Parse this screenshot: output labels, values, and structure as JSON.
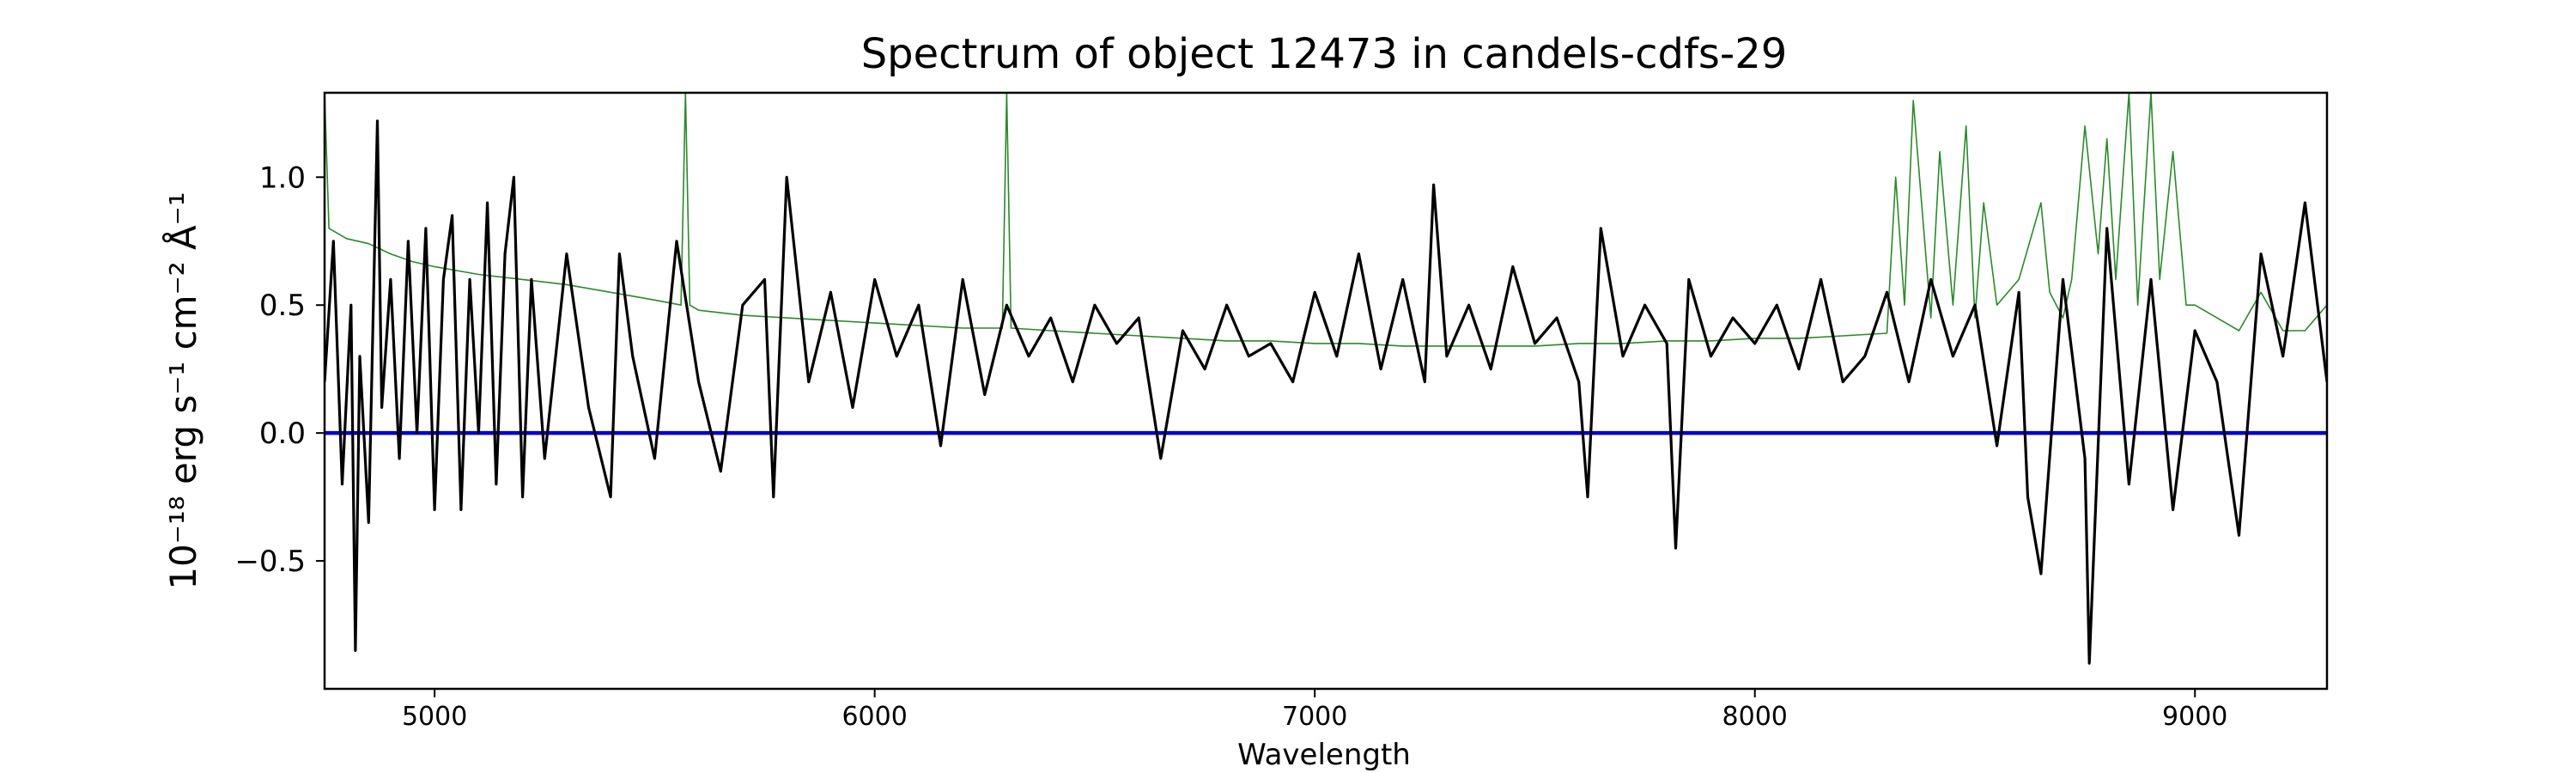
{
  "chart_data": {
    "type": "line",
    "title": "Spectrum of object 12473 in candels-cdfs-29",
    "xlabel": "Wavelength",
    "ylabel": "10⁻¹⁸ erg s⁻¹ cm⁻² Å⁻¹",
    "xlim": [
      4750,
      9300
    ],
    "ylim": [
      -1.0,
      1.33
    ],
    "x_ticks": [
      5000,
      6000,
      7000,
      8000,
      9000
    ],
    "y_ticks": [
      -0.5,
      0.0,
      0.5,
      1.0
    ],
    "x_tick_labels": [
      "5000",
      "6000",
      "7000",
      "8000",
      "9000"
    ],
    "y_tick_labels": [
      "−0.5",
      "0.0",
      "0.5",
      "1.0"
    ],
    "grid": false,
    "legend": "none",
    "colors": {
      "flux": "#000000",
      "noise": "#2a8a2a",
      "zero_line": "#0000cc"
    },
    "series": [
      {
        "role": "flux",
        "x": [
          4750,
          4770,
          4790,
          4810,
          4820,
          4830,
          4850,
          4870,
          4880,
          4900,
          4920,
          4940,
          4960,
          4980,
          5000,
          5020,
          5040,
          5060,
          5080,
          5100,
          5120,
          5140,
          5160,
          5180,
          5200,
          5220,
          5250,
          5300,
          5350,
          5400,
          5420,
          5450,
          5500,
          5550,
          5600,
          5650,
          5700,
          5750,
          5770,
          5800,
          5850,
          5900,
          5950,
          6000,
          6050,
          6100,
          6150,
          6200,
          6250,
          6300,
          6350,
          6400,
          6450,
          6500,
          6550,
          6600,
          6650,
          6700,
          6750,
          6800,
          6850,
          6900,
          6950,
          7000,
          7050,
          7100,
          7150,
          7200,
          7250,
          7270,
          7300,
          7350,
          7400,
          7450,
          7500,
          7550,
          7600,
          7620,
          7650,
          7700,
          7750,
          7800,
          7820,
          7850,
          7900,
          7950,
          8000,
          8050,
          8100,
          8150,
          8200,
          8250,
          8300,
          8350,
          8400,
          8450,
          8500,
          8550,
          8600,
          8620,
          8650,
          8700,
          8750,
          8760,
          8800,
          8850,
          8900,
          8950,
          9000,
          9050,
          9100,
          9150,
          9200,
          9250,
          9300
        ],
        "y": [
          0.2,
          0.75,
          -0.2,
          0.5,
          -0.85,
          0.3,
          -0.35,
          1.22,
          0.1,
          0.6,
          -0.1,
          0.75,
          0.0,
          0.8,
          -0.3,
          0.6,
          0.85,
          -0.3,
          0.6,
          0.0,
          0.9,
          -0.2,
          0.7,
          1.0,
          -0.25,
          0.6,
          -0.1,
          0.7,
          0.1,
          -0.25,
          0.7,
          0.3,
          -0.1,
          0.75,
          0.2,
          -0.15,
          0.5,
          0.6,
          -0.25,
          1.0,
          0.2,
          0.55,
          0.1,
          0.6,
          0.3,
          0.5,
          -0.05,
          0.6,
          0.15,
          0.5,
          0.3,
          0.45,
          0.2,
          0.5,
          0.35,
          0.45,
          -0.1,
          0.4,
          0.25,
          0.5,
          0.3,
          0.35,
          0.2,
          0.55,
          0.3,
          0.7,
          0.25,
          0.6,
          0.2,
          0.97,
          0.3,
          0.5,
          0.25,
          0.65,
          0.35,
          0.45,
          0.2,
          -0.25,
          0.8,
          0.3,
          0.5,
          0.35,
          -0.45,
          0.6,
          0.3,
          0.45,
          0.35,
          0.5,
          0.25,
          0.6,
          0.2,
          0.3,
          0.55,
          0.2,
          0.6,
          0.3,
          0.5,
          -0.05,
          0.55,
          -0.25,
          -0.55,
          0.6,
          -0.1,
          -0.9,
          0.8,
          -0.2,
          0.6,
          -0.3,
          0.4,
          0.2,
          -0.4,
          0.7,
          0.3,
          0.9,
          0.2
        ]
      },
      {
        "role": "noise",
        "x": [
          4750,
          4760,
          4780,
          4800,
          4850,
          4900,
          4950,
          5000,
          5100,
          5200,
          5300,
          5400,
          5500,
          5560,
          5570,
          5580,
          5600,
          5700,
          5800,
          5900,
          6000,
          6100,
          6200,
          6290,
          6300,
          6310,
          6400,
          6500,
          6600,
          6700,
          6800,
          6900,
          7000,
          7100,
          7200,
          7300,
          7400,
          7500,
          7600,
          7700,
          7800,
          7900,
          8000,
          8100,
          8200,
          8300,
          8320,
          8340,
          8360,
          8400,
          8420,
          8450,
          8480,
          8500,
          8520,
          8550,
          8600,
          8650,
          8670,
          8700,
          8720,
          8750,
          8780,
          8800,
          8820,
          8850,
          8870,
          8900,
          8920,
          8950,
          8980,
          9000,
          9050,
          9100,
          9150,
          9200,
          9250,
          9300
        ],
        "y": [
          1.33,
          0.8,
          0.78,
          0.76,
          0.74,
          0.7,
          0.67,
          0.65,
          0.62,
          0.6,
          0.58,
          0.55,
          0.52,
          0.5,
          1.33,
          0.5,
          0.48,
          0.46,
          0.45,
          0.44,
          0.43,
          0.42,
          0.41,
          0.41,
          1.33,
          0.41,
          0.4,
          0.39,
          0.38,
          0.37,
          0.36,
          0.36,
          0.35,
          0.35,
          0.34,
          0.34,
          0.34,
          0.34,
          0.35,
          0.35,
          0.36,
          0.36,
          0.37,
          0.37,
          0.38,
          0.39,
          1.0,
          0.5,
          1.3,
          0.45,
          1.1,
          0.5,
          1.2,
          0.45,
          0.9,
          0.5,
          0.6,
          0.9,
          0.55,
          0.45,
          0.6,
          1.2,
          0.7,
          1.15,
          0.6,
          1.33,
          0.5,
          1.33,
          0.6,
          1.1,
          0.5,
          0.5,
          0.45,
          0.4,
          0.55,
          0.4,
          0.4,
          0.5
        ]
      },
      {
        "role": "zero_line",
        "x": [
          4750,
          9300
        ],
        "y": [
          0.0,
          0.0
        ]
      }
    ]
  }
}
